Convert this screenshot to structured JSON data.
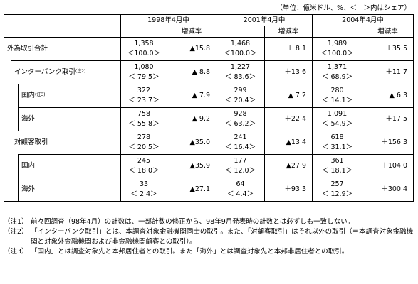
{
  "unit_note": "（単位：億米ドル、%、＜　＞内はシェア）",
  "periods": [
    "1998年4月中",
    "2001年4月中",
    "2004年4月中"
  ],
  "change_label": "増減率",
  "rows": [
    {
      "label": "外為取引合計",
      "sup": "",
      "level": 0,
      "cells": [
        [
          "1,358",
          "＜100.0＞",
          "▲15.8"
        ],
        [
          "1,468",
          "＜100.0＞",
          "＋ 8.1"
        ],
        [
          "1,989",
          "＜100.0＞",
          "＋35.5"
        ]
      ]
    },
    {
      "label": "インターバンク取引",
      "sup": "(注2)",
      "level": 1,
      "cells": [
        [
          "1,080",
          "＜ 79.5＞",
          "▲ 8.8"
        ],
        [
          "1,227",
          "＜ 83.6＞",
          "＋13.6"
        ],
        [
          "1,371",
          "＜ 68.9＞",
          "＋11.7"
        ]
      ]
    },
    {
      "label": "国内",
      "sup": "(注3)",
      "level": 2,
      "cells": [
        [
          "322",
          "＜ 23.7＞",
          "▲ 7.9"
        ],
        [
          "299",
          "＜ 20.4＞",
          "▲ 7.2"
        ],
        [
          "280",
          "＜ 14.1＞",
          "▲ 6.3"
        ]
      ]
    },
    {
      "label": "海外",
      "sup": "",
      "level": 2,
      "cells": [
        [
          "758",
          "＜ 55.8＞",
          "▲ 9.2"
        ],
        [
          "928",
          "＜ 63.2＞",
          "＋22.4"
        ],
        [
          "1,091",
          "＜ 54.9＞",
          "＋17.5"
        ]
      ]
    },
    {
      "label": "対顧客取引",
      "sup": "",
      "level": 1,
      "cells": [
        [
          "278",
          "＜ 20.5＞",
          "▲35.0"
        ],
        [
          "241",
          "＜ 16.4＞",
          "▲13.4"
        ],
        [
          "618",
          "＜ 31.1＞",
          "＋156.3"
        ]
      ]
    },
    {
      "label": "国内",
      "sup": "",
      "level": 2,
      "cells": [
        [
          "245",
          "＜ 18.0＞",
          "▲35.9"
        ],
        [
          "177",
          "＜ 12.0＞",
          "▲27.9"
        ],
        [
          "361",
          "＜ 18.1＞",
          "＋104.0"
        ]
      ]
    },
    {
      "label": "海外",
      "sup": "",
      "level": 2,
      "cells": [
        [
          "33",
          "＜ 2.4＞",
          "▲27.1"
        ],
        [
          "64",
          "＜ 4.4＞",
          "＋93.3"
        ],
        [
          "257",
          "＜ 12.9＞",
          "＋300.4"
        ]
      ]
    }
  ],
  "notes": [
    {
      "key": "（注1）",
      "text": "前々回調査（98年4月）の計数は、一部計数の修正から、98年9月発表時の計数とは必ずしも一致しない。"
    },
    {
      "key": "（注2）",
      "text": "「インターバンク取引」とは、本調査対象金融機関同士の取引。また、「対顧客取引」はそれ以外の取引（＝本調査対象金融機関と対象外金融機関および非金融機関顧客との取引）。"
    },
    {
      "key": "（注3）",
      "text": "「国内」とは調査対象先と本邦居住者との取引。また「海外」とは調査対象先と本邦非居住者との取引。"
    }
  ]
}
